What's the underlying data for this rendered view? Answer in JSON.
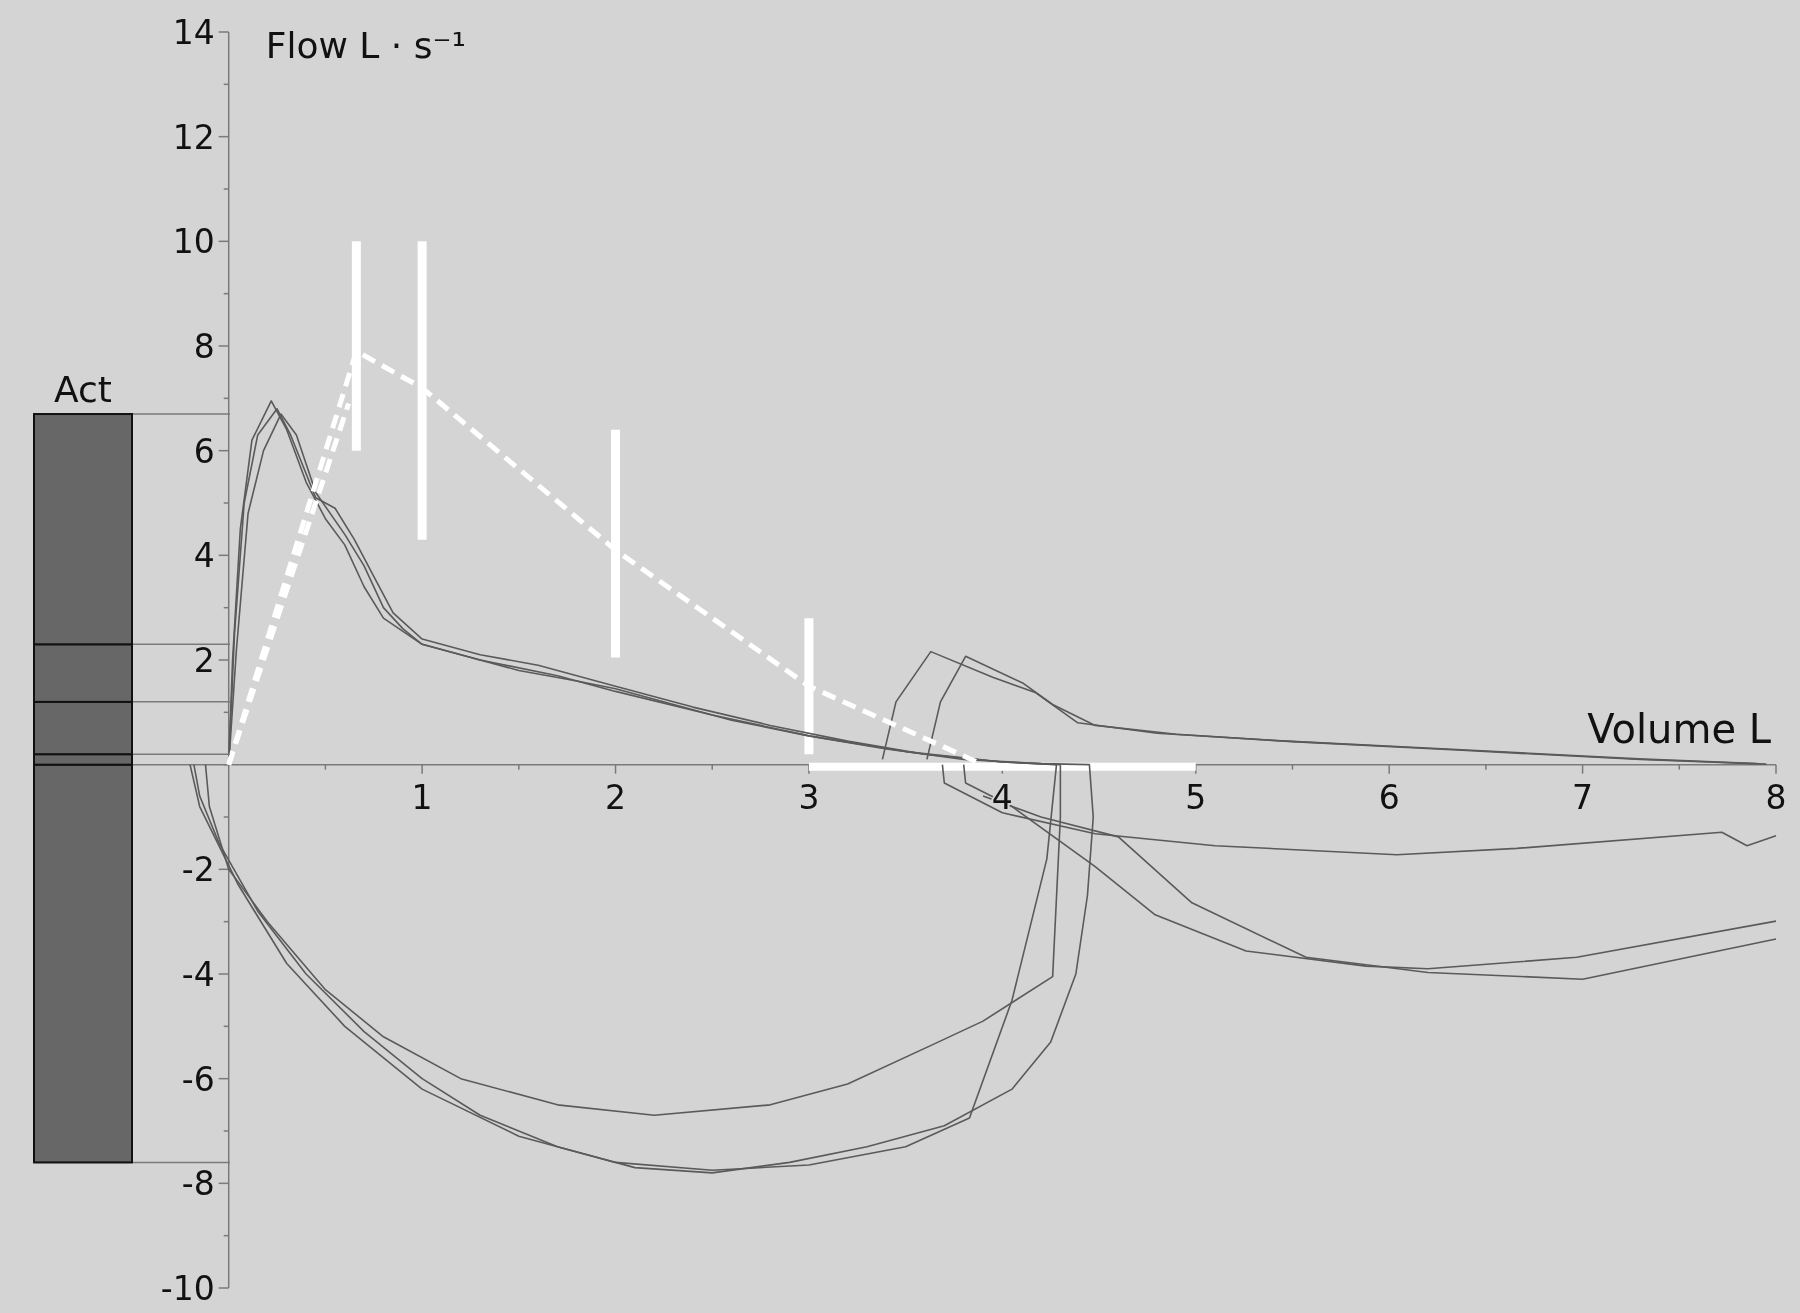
{
  "chart_data": [
    {
      "type": "line",
      "xlabel": "Volume L",
      "ylabel": "Flow L · s⁻¹",
      "xlim": [
        -0.5,
        8
      ],
      "ylim": [
        -10,
        14
      ],
      "xticks": [
        {
          "value": 0.5,
          "label": null
        },
        1,
        {
          "value": 1.5,
          "label": null
        },
        2,
        {
          "value": 2.5,
          "label": null
        },
        3,
        {
          "value": 3.5,
          "label": null
        },
        4,
        {
          "value": 4.5,
          "label": null
        },
        5,
        {
          "value": 5.5,
          "label": null
        },
        6,
        {
          "value": 6.5,
          "label": null
        },
        7,
        {
          "value": 7.5,
          "label": null
        },
        8
      ],
      "yticks": [
        -10,
        {
          "value": -9,
          "label": null
        },
        -8,
        {
          "value": -7,
          "label": null
        },
        -6,
        {
          "value": -5,
          "label": null
        },
        -4,
        {
          "value": -3,
          "label": null
        },
        -2,
        {
          "value": -1,
          "label": null
        },
        {
          "value": 0,
          "label": null
        },
        {
          "value": 1,
          "label": null
        },
        2,
        {
          "value": 3,
          "label": null
        },
        4,
        {
          "value": 5,
          "label": null
        },
        6,
        {
          "value": 7,
          "label": null
        },
        8,
        {
          "value": 9,
          "label": null
        },
        10,
        {
          "value": 11,
          "label": null
        },
        12,
        {
          "value": 13,
          "label": null
        },
        14
      ],
      "series": [
        {
          "type": "line",
          "color": "#5a5a5a",
          "x": [
            0,
            0.02,
            0.06,
            0.12,
            0.22,
            0.3,
            0.4,
            0.5,
            0.6,
            0.7,
            0.8,
            1.0,
            1.2,
            1.5,
            1.8,
            2.0,
            2.3,
            2.6,
            3.0,
            3.4,
            3.8,
            4.2,
            4.45,
            4.47,
            4.44,
            4.38,
            4.25,
            4.05,
            3.7,
            3.3,
            2.9,
            2.5,
            2.1,
            1.7,
            1.3,
            1.0,
            0.7,
            0.4,
            0.15,
            -0.05,
            -0.15,
            -0.18
          ],
          "values": [
            0,
            2,
            4.5,
            6.2,
            6.95,
            6.4,
            5.4,
            4.7,
            4.2,
            3.4,
            2.8,
            2.3,
            2.1,
            1.8,
            1.6,
            1.45,
            1.15,
            0.85,
            0.55,
            0.3,
            0.1,
            0.02,
            0,
            -1,
            -2.5,
            -4,
            -5.3,
            -6.2,
            -6.9,
            -7.3,
            -7.6,
            -7.8,
            -7.7,
            -7.3,
            -6.7,
            -6.0,
            -5.1,
            -4.0,
            -2.8,
            -1.5,
            -0.6,
            0
          ]
        },
        {
          "type": "line",
          "color": "#5a5a5a",
          "x": [
            0,
            0.03,
            0.08,
            0.15,
            0.25,
            0.32,
            0.45,
            0.55,
            0.65,
            0.75,
            0.85,
            1.0,
            1.3,
            1.6,
            2.0,
            2.4,
            2.8,
            3.2,
            3.6,
            4.0,
            4.3,
            4.3,
            4.26,
            3.9,
            3.64,
            3.2,
            2.8,
            2.2,
            1.7,
            1.2,
            0.8,
            0.5,
            0.2,
            0,
            -0.1,
            -0.12
          ],
          "values": [
            0,
            2.5,
            5,
            6.3,
            6.8,
            6.3,
            5.1,
            4.9,
            4.3,
            3.6,
            2.9,
            2.4,
            2.1,
            1.9,
            1.5,
            1.1,
            0.75,
            0.45,
            0.2,
            0.05,
            0,
            -1,
            -4.05,
            -4.9,
            -5.35,
            -6.1,
            -6.5,
            -6.7,
            -6.5,
            -6.0,
            -5.2,
            -4.3,
            -3.0,
            -2,
            -0.8,
            0
          ]
        },
        {
          "type": "line",
          "color": "#5a5a5a",
          "x": [
            0,
            0.04,
            0.1,
            0.18,
            0.27,
            0.35,
            0.45,
            0.6,
            0.7,
            0.8,
            0.9,
            1.0,
            1.3,
            1.7,
            2.0,
            2.5,
            3.0,
            3.5,
            4.0,
            4.28,
            4.23,
            4.05,
            3.83,
            3.5,
            3.0,
            2.5,
            2.0,
            1.5,
            1.0,
            0.6,
            0.3,
            0.05,
            -0.15,
            -0.2
          ],
          "values": [
            0,
            2.2,
            4.8,
            6.0,
            6.7,
            6.3,
            5.2,
            4.4,
            3.8,
            3.0,
            2.6,
            2.3,
            2.0,
            1.7,
            1.4,
            0.95,
            0.55,
            0.25,
            0.05,
            0,
            -1.8,
            -4.5,
            -6.75,
            -7.3,
            -7.65,
            -7.75,
            -7.6,
            -7.1,
            -6.2,
            -5.0,
            -3.8,
            -2.3,
            -0.8,
            0
          ]
        },
        {
          "type": "line",
          "color": "#5a5a5a",
          "x": [
            3.38,
            3.45,
            3.63,
            3.95,
            4.17,
            4.39,
            4.8,
            5.42,
            6.35,
            7.29,
            7.9
          ],
          "values": [
            0.1,
            1.2,
            2.16,
            1.67,
            1.38,
            0.8,
            0.6,
            0.46,
            0.29,
            0.11,
            0.02
          ]
        },
        {
          "type": "line",
          "color": "#5a5a5a",
          "x": [
            3.61,
            3.68,
            3.81,
            4.11,
            4.26,
            4.48,
            4.9,
            5.5,
            6.4,
            7.3,
            7.95
          ],
          "values": [
            0.1,
            1.2,
            2.07,
            1.55,
            1.15,
            0.75,
            0.58,
            0.44,
            0.27,
            0.1,
            0.01
          ]
        },
        {
          "type": "line",
          "color": "#5a5a5a",
          "x": [
            3.69,
            3.7,
            4.0,
            4.48,
            5.1,
            6.04,
            6.66,
            7.72,
            7.85,
            8.0
          ],
          "values": [
            0,
            -0.35,
            -0.92,
            -1.32,
            -1.55,
            -1.72,
            -1.6,
            -1.29,
            -1.55,
            -1.36
          ]
        },
        {
          "type": "line",
          "color": "#5a5a5a",
          "x": [
            3.8,
            3.81,
            4.05,
            4.48,
            4.79,
            5.26,
            5.88,
            6.2,
            6.97,
            8.0
          ],
          "values": [
            0,
            -0.35,
            -0.8,
            -1.95,
            -2.87,
            -3.56,
            -3.85,
            -3.9,
            -3.68,
            -2.99
          ]
        },
        {
          "type": "line",
          "color": "#5a5a5a",
          "x": [
            3.9,
            4.2,
            4.6,
            4.98,
            5.57,
            6.2,
            7.0,
            8.0
          ],
          "values": [
            -0.6,
            -1.0,
            -1.38,
            -2.64,
            -3.68,
            -3.97,
            -4.1,
            -3.33
          ]
        },
        {
          "type": "line",
          "color": "#ffffff",
          "line_style": "dashed",
          "x": [
            0,
            0.66,
            1.0,
            2.0,
            3.0,
            3.9
          ],
          "values": [
            0,
            7.9,
            7.2,
            4.1,
            1.5,
            0
          ],
          "errors": [
            null,
            [
              6.0,
              10.0
            ],
            [
              4.3,
              10.0
            ],
            [
              2.05,
              6.4
            ],
            [
              0.2,
              2.8
            ],
            null
          ],
          "xerrors": [
            null,
            null,
            null,
            null,
            null,
            [
              3,
              5
            ]
          ]
        },
        {
          "type": "line",
          "color": "#ffffff",
          "line_style": "dashed",
          "x": [
            0,
            0.62
          ],
          "values": [
            0,
            6.9
          ]
        }
      ]
    },
    {
      "type": "bar",
      "categories": [
        "Act"
      ],
      "stacked": true,
      "ylim": [
        -10,
        14
      ],
      "series": [
        {
          "color": "#676767",
          "values": [
            -7.6
          ]
        },
        {
          "color": "#676767",
          "values": [
            0.2
          ]
        },
        {
          "color": "#676767",
          "values": [
            1.0
          ]
        },
        {
          "color": "#676767",
          "values": [
            1.1
          ]
        },
        {
          "color": "#676767",
          "values": [
            4.4
          ]
        }
      ],
      "ref_lines": [
        {
          "axis": "y",
          "value": 6.7,
          "color": "#7a7a7a"
        },
        {
          "axis": "y",
          "value": 2.3,
          "color": "#7a7a7a"
        },
        {
          "axis": "y",
          "value": 1.2,
          "color": "#7a7a7a"
        },
        {
          "axis": "y",
          "value": 0.2,
          "color": "#7a7a7a"
        },
        {
          "axis": "y",
          "value": -7.6,
          "color": "#7a7a7a"
        }
      ]
    }
  ]
}
